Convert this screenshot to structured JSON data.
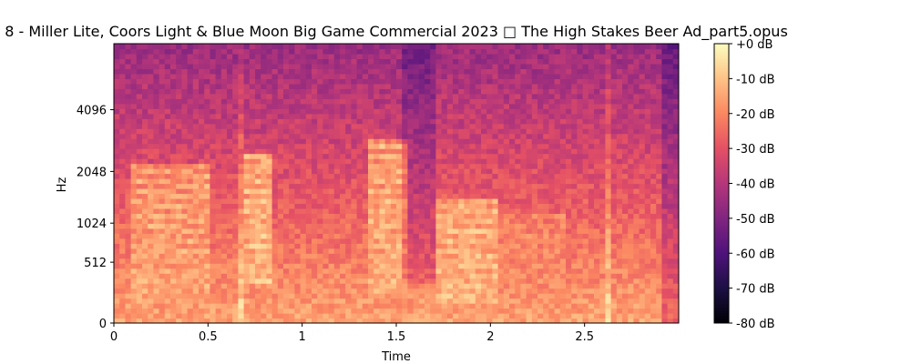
{
  "chart_data": {
    "type": "heatmap",
    "title": "8 - Miller Lite, Coors Light & Blue Moon Big Game Commercial 2023 □ The High Stakes Beer Ad_part5.opus",
    "xlabel": "Time",
    "ylabel": "Hz",
    "x_ticks": [
      {
        "value": 0,
        "label": "0"
      },
      {
        "value": 0.5,
        "label": "0.5"
      },
      {
        "value": 1,
        "label": "1"
      },
      {
        "value": 1.5,
        "label": "1.5"
      },
      {
        "value": 2,
        "label": "2"
      },
      {
        "value": 2.5,
        "label": "2.5"
      }
    ],
    "y_ticks": [
      {
        "value": 0,
        "label": "0"
      },
      {
        "value": 512,
        "label": "512"
      },
      {
        "value": 1024,
        "label": "1024"
      },
      {
        "value": 2048,
        "label": "2048"
      },
      {
        "value": 4096,
        "label": "4096"
      }
    ],
    "xlim": [
      0,
      3.0
    ],
    "y_scale": "mel",
    "ylim": [
      0,
      8000
    ],
    "colorbar": {
      "colormap": "magma",
      "range": [
        -80,
        0
      ],
      "unit": "dB",
      "ticks": [
        {
          "value": 0,
          "label": "+0 dB"
        },
        {
          "value": -10,
          "label": "-10 dB"
        },
        {
          "value": -20,
          "label": "-20 dB"
        },
        {
          "value": -30,
          "label": "-30 dB"
        },
        {
          "value": -40,
          "label": "-40 dB"
        },
        {
          "value": -50,
          "label": "-50 dB"
        },
        {
          "value": -60,
          "label": "-60 dB"
        },
        {
          "value": -70,
          "label": "-70 dB"
        },
        {
          "value": -80,
          "label": "-80 dB"
        }
      ]
    },
    "spectrogram_features": {
      "onsets_s": [
        0.0,
        0.66,
        1.4,
        1.72,
        2.45,
        2.62
      ],
      "harmonic_bursts": [
        {
          "t_start": 0.1,
          "t_end": 0.5,
          "f_low_hz": 150,
          "f_high_hz": 2200,
          "level_db": -14
        },
        {
          "t_start": 0.7,
          "t_end": 0.85,
          "f_low_hz": 300,
          "f_high_hz": 2500,
          "level_db": -10
        },
        {
          "t_start": 1.35,
          "t_end": 1.55,
          "f_low_hz": 200,
          "f_high_hz": 3000,
          "level_db": -12
        },
        {
          "t_start": 1.72,
          "t_end": 2.05,
          "f_low_hz": 150,
          "f_high_hz": 1500,
          "level_db": -11
        },
        {
          "t_start": 2.05,
          "t_end": 2.4,
          "f_low_hz": 200,
          "f_high_hz": 1200,
          "level_db": -20
        }
      ],
      "broadband_streaks_s": [
        0.67,
        2.62
      ],
      "quiet_gap_s": [
        1.52,
        1.7
      ],
      "low_freq_energy_db": -15,
      "high_freq_energy_db": -45
    }
  }
}
